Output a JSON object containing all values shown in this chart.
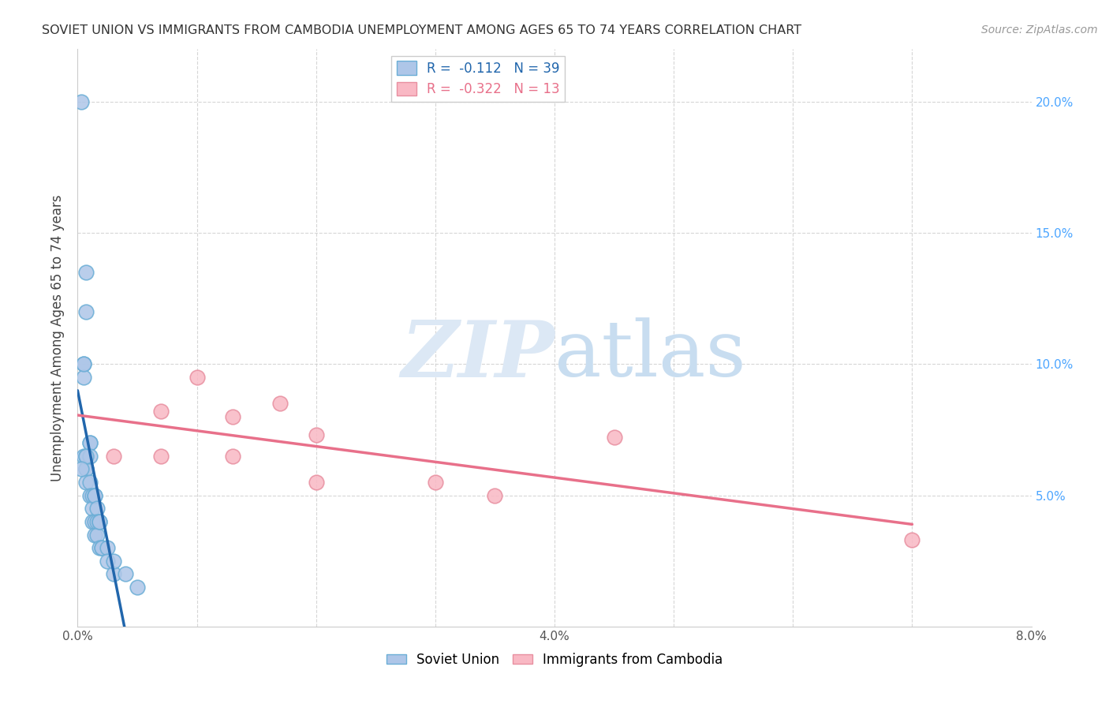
{
  "title": "SOVIET UNION VS IMMIGRANTS FROM CAMBODIA UNEMPLOYMENT AMONG AGES 65 TO 74 YEARS CORRELATION CHART",
  "source": "Source: ZipAtlas.com",
  "ylabel": "Unemployment Among Ages 65 to 74 years",
  "xlim": [
    0.0,
    0.08
  ],
  "ylim": [
    0.0,
    0.22
  ],
  "legend_entries": [
    {
      "label": "R =  -0.112   N = 39",
      "facecolor": "#aec6e8",
      "edgecolor": "#6baed6",
      "textcolor": "#2166ac"
    },
    {
      "label": "R =  -0.322   N = 13",
      "facecolor": "#f9b8c4",
      "edgecolor": "#e88fa0",
      "textcolor": "#e8708a"
    }
  ],
  "soviet_x": [
    0.0003,
    0.0005,
    0.0005,
    0.0005,
    0.0005,
    0.0007,
    0.0007,
    0.0007,
    0.0007,
    0.0007,
    0.0007,
    0.001,
    0.001,
    0.001,
    0.001,
    0.001,
    0.0012,
    0.0012,
    0.0012,
    0.0014,
    0.0014,
    0.0014,
    0.0014,
    0.0016,
    0.0016,
    0.0016,
    0.0018,
    0.0018,
    0.0018,
    0.002,
    0.002,
    0.0025,
    0.0025,
    0.003,
    0.003,
    0.004,
    0.005,
    0.0007,
    0.0003
  ],
  "soviet_y": [
    0.2,
    0.065,
    0.1,
    0.095,
    0.1,
    0.135,
    0.12,
    0.065,
    0.06,
    0.06,
    0.055,
    0.07,
    0.07,
    0.065,
    0.055,
    0.05,
    0.05,
    0.045,
    0.04,
    0.05,
    0.05,
    0.04,
    0.035,
    0.045,
    0.04,
    0.035,
    0.04,
    0.04,
    0.03,
    0.03,
    0.03,
    0.03,
    0.025,
    0.02,
    0.025,
    0.02,
    0.015,
    0.065,
    0.06
  ],
  "cambodia_x": [
    0.003,
    0.007,
    0.007,
    0.01,
    0.013,
    0.013,
    0.017,
    0.02,
    0.02,
    0.03,
    0.035,
    0.045,
    0.07
  ],
  "cambodia_y": [
    0.065,
    0.082,
    0.065,
    0.095,
    0.08,
    0.065,
    0.085,
    0.073,
    0.055,
    0.055,
    0.05,
    0.072,
    0.033
  ],
  "soviet_color": "#aec6e8",
  "soviet_edge": "#6baed6",
  "cambodia_color": "#f9b8c4",
  "cambodia_edge": "#e88fa0",
  "trendline_soviet_color": "#2166ac",
  "trendline_cambodia_color": "#e8708a",
  "trendline_dashed_color": "#aec6e8",
  "background_color": "#ffffff",
  "grid_color": "#cccccc",
  "title_color": "#333333",
  "right_tick_color": "#4da6ff",
  "watermark_color": "#dce8f5",
  "watermark_text": "ZIPatlas"
}
